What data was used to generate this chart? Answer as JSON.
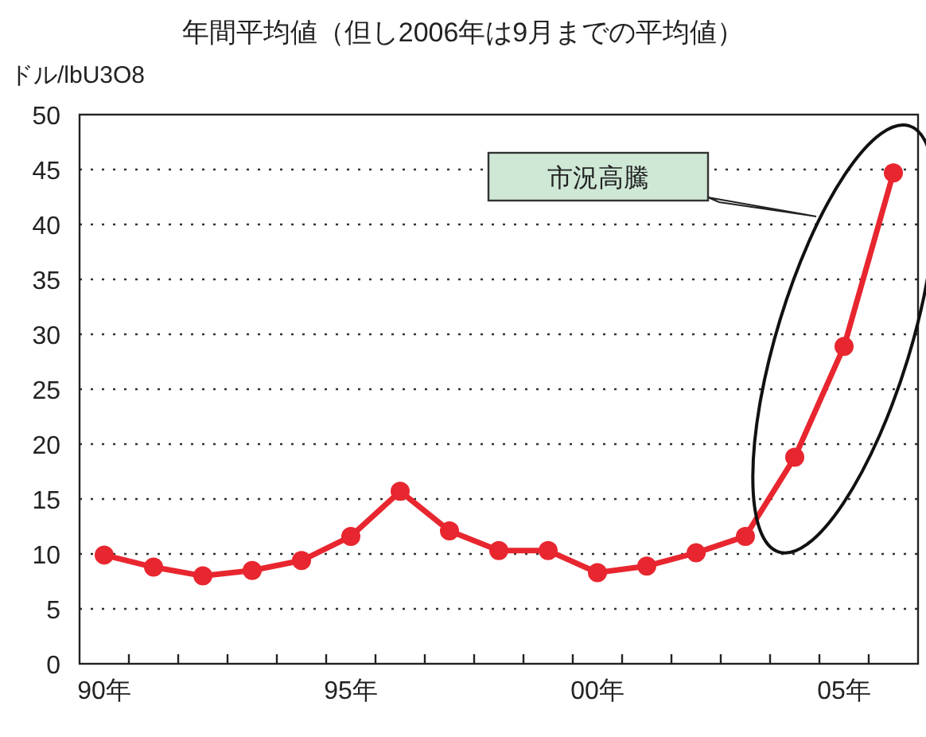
{
  "chart_data": {
    "type": "line",
    "title": "年間平均値（但し2006年は9月までの平均値）",
    "ylabel": "ドル/lbU3O8",
    "annotations": [
      "市況高騰"
    ],
    "categories": [
      "90年",
      null,
      null,
      null,
      null,
      "95年",
      null,
      null,
      null,
      null,
      "00年",
      null,
      null,
      null,
      null,
      "05年",
      null
    ],
    "values": [
      9.9,
      8.8,
      8.0,
      8.5,
      9.4,
      11.6,
      15.7,
      12.1,
      10.3,
      10.3,
      8.3,
      8.9,
      10.1,
      11.6,
      18.8,
      28.9,
      44.7
    ],
    "color": "#e8262f",
    "marker": "circle",
    "line_style": "solid",
    "ylim": [
      0,
      50
    ],
    "yticks": [
      0,
      5,
      10,
      15,
      20,
      25,
      30,
      35,
      40,
      45,
      50
    ],
    "grid": "y"
  }
}
